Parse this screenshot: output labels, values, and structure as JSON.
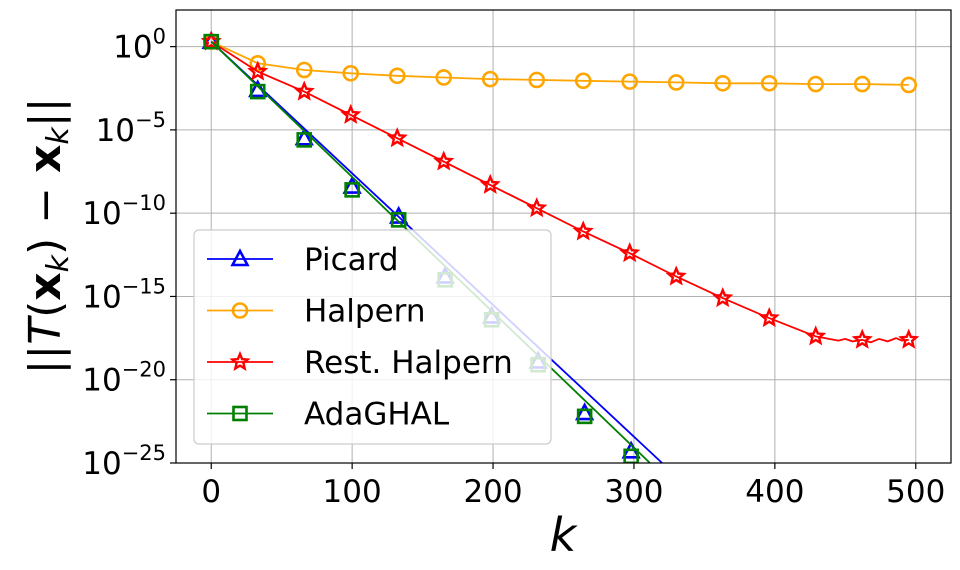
{
  "chart_data": {
    "type": "line",
    "title": "",
    "xlabel": "k",
    "ylabel": "||T(x_k) − x_k||",
    "ylabel_parts": {
      "open": "||",
      "func": "T",
      "paren_open": "(",
      "x": "x",
      "sub": "k",
      "paren_close": ")",
      "minus": " − ",
      "x2": "x",
      "sub2": "k",
      "close": "||"
    },
    "xlim": [
      -25,
      525
    ],
    "ylim_log10": [
      -25,
      2.2
    ],
    "grid": true,
    "legend_position": "lower-left",
    "x_ticks": [
      0,
      100,
      200,
      300,
      400,
      500
    ],
    "x_tick_labels": [
      "0",
      "100",
      "200",
      "300",
      "400",
      "500"
    ],
    "y_ticks_exponent": [
      0,
      -5,
      -10,
      -15,
      -20,
      -25
    ],
    "y_tick_base": "10",
    "y_tick_exponents_text": [
      "0",
      "−5",
      "−10",
      "−15",
      "−20",
      "−25"
    ],
    "series": [
      {
        "name": "Picard",
        "color": "#0000ff",
        "marker": "triangle",
        "line_points": [
          [
            0,
            0.3
          ],
          [
            320,
            -25
          ]
        ],
        "marker_points": [
          [
            0,
            0.3
          ],
          [
            33,
            -2.6
          ],
          [
            66,
            -5.5
          ],
          [
            100,
            -8.4
          ],
          [
            133,
            -10.2
          ],
          [
            166,
            -13.8
          ],
          [
            199,
            -16.2
          ],
          [
            232,
            -18.9
          ],
          [
            265,
            -22.0
          ],
          [
            298,
            -24.3
          ]
        ]
      },
      {
        "name": "Halpern",
        "color": "#ffa500",
        "marker": "circle",
        "line_points": [
          [
            0,
            0.3
          ],
          [
            33,
            -1.0
          ],
          [
            66,
            -1.4
          ],
          [
            99,
            -1.6
          ],
          [
            132,
            -1.75
          ],
          [
            165,
            -1.85
          ],
          [
            198,
            -1.95
          ],
          [
            231,
            -2.0
          ],
          [
            264,
            -2.05
          ],
          [
            297,
            -2.1
          ],
          [
            330,
            -2.15
          ],
          [
            363,
            -2.2
          ],
          [
            396,
            -2.2
          ],
          [
            429,
            -2.25
          ],
          [
            462,
            -2.25
          ],
          [
            495,
            -2.3
          ]
        ],
        "marker_points": [
          [
            0,
            0.3
          ],
          [
            33,
            -1.0
          ],
          [
            66,
            -1.4
          ],
          [
            99,
            -1.6
          ],
          [
            132,
            -1.75
          ],
          [
            165,
            -1.85
          ],
          [
            198,
            -1.95
          ],
          [
            231,
            -2.0
          ],
          [
            264,
            -2.05
          ],
          [
            297,
            -2.1
          ],
          [
            330,
            -2.15
          ],
          [
            363,
            -2.2
          ],
          [
            396,
            -2.2
          ],
          [
            429,
            -2.25
          ],
          [
            462,
            -2.25
          ],
          [
            495,
            -2.3
          ]
        ]
      },
      {
        "name": "Rest. Halpern",
        "color": "#ff0000",
        "marker": "star",
        "line_points": [
          [
            0,
            0.3
          ],
          [
            33,
            -1.5
          ],
          [
            66,
            -2.7
          ],
          [
            99,
            -4.1
          ],
          [
            132,
            -5.5
          ],
          [
            165,
            -6.9
          ],
          [
            198,
            -8.3
          ],
          [
            231,
            -9.7
          ],
          [
            264,
            -11.1
          ],
          [
            297,
            -12.4
          ],
          [
            330,
            -13.8
          ],
          [
            363,
            -15.1
          ],
          [
            396,
            -16.3
          ],
          [
            429,
            -17.4
          ],
          [
            445,
            -17.65
          ],
          [
            450,
            -17.55
          ],
          [
            455,
            -17.7
          ],
          [
            462,
            -17.6
          ],
          [
            468,
            -17.75
          ],
          [
            474,
            -17.55
          ],
          [
            480,
            -17.7
          ],
          [
            486,
            -17.5
          ],
          [
            490,
            -17.65
          ],
          [
            495,
            -17.6
          ]
        ],
        "marker_points": [
          [
            0,
            0.3
          ],
          [
            33,
            -1.5
          ],
          [
            66,
            -2.7
          ],
          [
            99,
            -4.1
          ],
          [
            132,
            -5.5
          ],
          [
            165,
            -6.9
          ],
          [
            198,
            -8.3
          ],
          [
            231,
            -9.7
          ],
          [
            264,
            -11.1
          ],
          [
            297,
            -12.4
          ],
          [
            330,
            -13.8
          ],
          [
            363,
            -15.1
          ],
          [
            396,
            -16.3
          ],
          [
            429,
            -17.4
          ],
          [
            462,
            -17.6
          ],
          [
            495,
            -17.6
          ]
        ]
      },
      {
        "name": "AdaGHAL",
        "color": "#008000",
        "marker": "square",
        "line_points": [
          [
            0,
            0.3
          ],
          [
            320,
            -25.7
          ]
        ],
        "marker_points": [
          [
            0,
            0.3
          ],
          [
            33,
            -2.7
          ],
          [
            66,
            -5.6
          ],
          [
            100,
            -8.6
          ],
          [
            133,
            -10.4
          ],
          [
            166,
            -14.0
          ],
          [
            199,
            -16.4
          ],
          [
            232,
            -19.1
          ],
          [
            265,
            -22.2
          ],
          [
            298,
            -24.6
          ]
        ]
      }
    ]
  }
}
